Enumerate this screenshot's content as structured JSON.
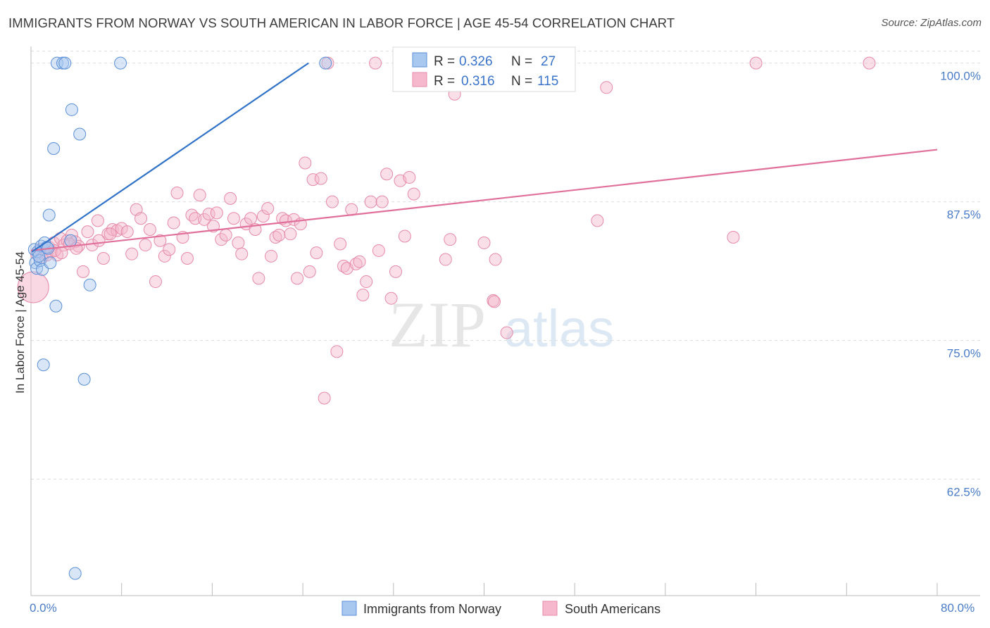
{
  "title": "IMMIGRANTS FROM NORWAY VS SOUTH AMERICAN IN LABOR FORCE | AGE 45-54 CORRELATION CHART",
  "source": "Source: ZipAtlas.com",
  "watermark": {
    "zip": "ZIP",
    "atlas": "atlas"
  },
  "colors": {
    "blue_fill": "#a8c8f0",
    "blue_stroke": "#5b8fd6",
    "blue_line": "#2f72c8",
    "pink_fill": "#f5b8cc",
    "pink_stroke": "#e68aa8",
    "pink_line": "#e0709a",
    "grid": "#dddddd",
    "tick_text": "#4a7cc7"
  },
  "legend": {
    "rows": [
      {
        "r_label": "R = ",
        "r_value": "0.326",
        "n_label": "N = ",
        "n_value": "27",
        "series": "norway"
      },
      {
        "r_label": "R = ",
        "r_value": "0.316",
        "n_label": "N = ",
        "n_value": "115",
        "series": "south_american"
      }
    ]
  },
  "bottom_legend": [
    {
      "label": "Immigrants from Norway",
      "series": "norway"
    },
    {
      "label": "South Americans",
      "series": "south_american"
    }
  ],
  "chart_data": {
    "type": "scatter",
    "title": "IMMIGRANTS FROM NORWAY VS SOUTH AMERICAN IN LABOR FORCE | AGE 45-54 CORRELATION CHART",
    "xlabel": "",
    "ylabel": "In Labor Force | Age 45-54",
    "xlim": [
      0,
      80
    ],
    "ylim": [
      52,
      101.5
    ],
    "x_tick_labels": [
      "0.0%",
      "80.0%"
    ],
    "y_ticks": [
      62.5,
      75.0,
      87.5,
      100.0
    ],
    "y_tick_labels": [
      "62.5%",
      "75.0%",
      "87.5%",
      "100.0%"
    ],
    "grid": true,
    "legend_position": "top-center",
    "series": [
      {
        "name": "Immigrants from Norway",
        "key": "norway",
        "R": 0.326,
        "N": 27,
        "trend": {
          "x": [
            0.1,
            24.5
          ],
          "y": [
            83.0,
            100.0
          ]
        },
        "points": [
          {
            "x": 0.3,
            "y": 83.2
          },
          {
            "x": 0.4,
            "y": 82.0
          },
          {
            "x": 0.5,
            "y": 81.5
          },
          {
            "x": 0.6,
            "y": 83.0
          },
          {
            "x": 0.8,
            "y": 82.2
          },
          {
            "x": 0.9,
            "y": 83.5
          },
          {
            "x": 1.0,
            "y": 81.4
          },
          {
            "x": 1.2,
            "y": 83.8
          },
          {
            "x": 1.4,
            "y": 83.4
          },
          {
            "x": 1.6,
            "y": 86.3
          },
          {
            "x": 1.7,
            "y": 82.0
          },
          {
            "x": 2.0,
            "y": 92.3
          },
          {
            "x": 2.2,
            "y": 78.1
          },
          {
            "x": 2.3,
            "y": 100.0
          },
          {
            "x": 2.8,
            "y": 100.0
          },
          {
            "x": 3.0,
            "y": 100.0
          },
          {
            "x": 3.5,
            "y": 84.0
          },
          {
            "x": 3.6,
            "y": 95.8
          },
          {
            "x": 4.3,
            "y": 93.6
          },
          {
            "x": 5.2,
            "y": 80.0
          },
          {
            "x": 7.9,
            "y": 100.0
          },
          {
            "x": 26.0,
            "y": 100.0
          },
          {
            "x": 1.1,
            "y": 72.8
          },
          {
            "x": 4.7,
            "y": 71.5
          },
          {
            "x": 3.9,
            "y": 54.0
          },
          {
            "x": 0.7,
            "y": 82.6
          },
          {
            "x": 1.5,
            "y": 83.3
          }
        ]
      },
      {
        "name": "South Americans",
        "key": "south_american",
        "R": 0.316,
        "N": 115,
        "trend": {
          "x": [
            0.0,
            80.0
          ],
          "y": [
            83.1,
            92.2
          ]
        },
        "points": [
          {
            "x": 0.2,
            "y": 79.8,
            "big": true
          },
          {
            "x": 0.5,
            "y": 82.8
          },
          {
            "x": 0.8,
            "y": 83.2
          },
          {
            "x": 1.0,
            "y": 82.5
          },
          {
            "x": 1.3,
            "y": 82.9
          },
          {
            "x": 1.6,
            "y": 83.4
          },
          {
            "x": 1.8,
            "y": 83.0
          },
          {
            "x": 2.0,
            "y": 83.8
          },
          {
            "x": 2.3,
            "y": 82.7
          },
          {
            "x": 2.6,
            "y": 84.2
          },
          {
            "x": 2.9,
            "y": 83.6
          },
          {
            "x": 3.2,
            "y": 84.0
          },
          {
            "x": 3.6,
            "y": 84.5
          },
          {
            "x": 3.9,
            "y": 83.9
          },
          {
            "x": 4.2,
            "y": 83.5
          },
          {
            "x": 4.6,
            "y": 81.2
          },
          {
            "x": 5.0,
            "y": 84.8
          },
          {
            "x": 5.4,
            "y": 83.6
          },
          {
            "x": 5.9,
            "y": 85.8
          },
          {
            "x": 6.4,
            "y": 82.4
          },
          {
            "x": 6.8,
            "y": 84.6
          },
          {
            "x": 7.2,
            "y": 85.0
          },
          {
            "x": 7.6,
            "y": 84.9
          },
          {
            "x": 8.0,
            "y": 85.1
          },
          {
            "x": 8.5,
            "y": 84.8
          },
          {
            "x": 8.9,
            "y": 82.8
          },
          {
            "x": 9.3,
            "y": 86.8
          },
          {
            "x": 9.7,
            "y": 86.0
          },
          {
            "x": 10.1,
            "y": 83.6
          },
          {
            "x": 10.5,
            "y": 85.0
          },
          {
            "x": 11.0,
            "y": 80.3
          },
          {
            "x": 11.4,
            "y": 84.0
          },
          {
            "x": 11.8,
            "y": 82.6
          },
          {
            "x": 12.2,
            "y": 83.2
          },
          {
            "x": 12.6,
            "y": 85.6
          },
          {
            "x": 12.9,
            "y": 88.3
          },
          {
            "x": 13.4,
            "y": 84.3
          },
          {
            "x": 13.8,
            "y": 82.4
          },
          {
            "x": 14.2,
            "y": 86.3
          },
          {
            "x": 14.5,
            "y": 86.0
          },
          {
            "x": 14.9,
            "y": 88.1
          },
          {
            "x": 15.3,
            "y": 85.9
          },
          {
            "x": 15.7,
            "y": 86.4
          },
          {
            "x": 16.1,
            "y": 85.3
          },
          {
            "x": 16.4,
            "y": 86.5
          },
          {
            "x": 16.8,
            "y": 84.1
          },
          {
            "x": 17.2,
            "y": 84.5
          },
          {
            "x": 17.6,
            "y": 87.8
          },
          {
            "x": 17.9,
            "y": 86.0
          },
          {
            "x": 18.3,
            "y": 83.8
          },
          {
            "x": 18.6,
            "y": 82.8
          },
          {
            "x": 19.0,
            "y": 85.5
          },
          {
            "x": 19.4,
            "y": 86.0
          },
          {
            "x": 19.8,
            "y": 85.0
          },
          {
            "x": 20.1,
            "y": 80.6
          },
          {
            "x": 20.5,
            "y": 86.2
          },
          {
            "x": 20.9,
            "y": 86.9
          },
          {
            "x": 21.2,
            "y": 82.6
          },
          {
            "x": 21.6,
            "y": 84.3
          },
          {
            "x": 21.9,
            "y": 84.5
          },
          {
            "x": 22.2,
            "y": 86.0
          },
          {
            "x": 22.5,
            "y": 85.8
          },
          {
            "x": 22.9,
            "y": 84.6
          },
          {
            "x": 23.2,
            "y": 85.9
          },
          {
            "x": 23.5,
            "y": 80.6
          },
          {
            "x": 23.8,
            "y": 85.5
          },
          {
            "x": 24.2,
            "y": 91.0
          },
          {
            "x": 24.6,
            "y": 81.2
          },
          {
            "x": 24.9,
            "y": 89.5
          },
          {
            "x": 25.2,
            "y": 82.9
          },
          {
            "x": 25.6,
            "y": 89.6
          },
          {
            "x": 25.9,
            "y": 69.8
          },
          {
            "x": 26.2,
            "y": 100.0
          },
          {
            "x": 26.6,
            "y": 87.5
          },
          {
            "x": 27.0,
            "y": 74.0
          },
          {
            "x": 27.3,
            "y": 83.7
          },
          {
            "x": 27.6,
            "y": 81.7
          },
          {
            "x": 27.9,
            "y": 81.5
          },
          {
            "x": 28.3,
            "y": 86.8
          },
          {
            "x": 28.7,
            "y": 81.9
          },
          {
            "x": 29.0,
            "y": 82.1
          },
          {
            "x": 29.3,
            "y": 79.1
          },
          {
            "x": 29.6,
            "y": 80.3
          },
          {
            "x": 30.0,
            "y": 87.5
          },
          {
            "x": 30.4,
            "y": 100.0
          },
          {
            "x": 30.7,
            "y": 83.1
          },
          {
            "x": 31.0,
            "y": 87.5
          },
          {
            "x": 31.4,
            "y": 90.0
          },
          {
            "x": 31.8,
            "y": 78.8
          },
          {
            "x": 32.2,
            "y": 81.2
          },
          {
            "x": 32.6,
            "y": 89.4
          },
          {
            "x": 33.0,
            "y": 84.4
          },
          {
            "x": 33.4,
            "y": 89.7
          },
          {
            "x": 33.8,
            "y": 88.2
          },
          {
            "x": 36.2,
            "y": 100.0
          },
          {
            "x": 36.6,
            "y": 82.3
          },
          {
            "x": 37.0,
            "y": 84.1
          },
          {
            "x": 37.4,
            "y": 97.2
          },
          {
            "x": 40.0,
            "y": 83.8
          },
          {
            "x": 41.0,
            "y": 82.3
          },
          {
            "x": 40.8,
            "y": 78.6
          },
          {
            "x": 40.9,
            "y": 78.5
          },
          {
            "x": 42.0,
            "y": 75.7
          },
          {
            "x": 50.0,
            "y": 85.8
          },
          {
            "x": 50.8,
            "y": 97.8
          },
          {
            "x": 62.0,
            "y": 84.3
          },
          {
            "x": 64.0,
            "y": 100.0
          },
          {
            "x": 74.0,
            "y": 100.0
          },
          {
            "x": 1.4,
            "y": 82.7
          },
          {
            "x": 2.1,
            "y": 83.1
          },
          {
            "x": 2.7,
            "y": 82.9
          },
          {
            "x": 3.4,
            "y": 83.7
          },
          {
            "x": 4.0,
            "y": 83.3
          },
          {
            "x": 6.0,
            "y": 84.0
          },
          {
            "x": 7.0,
            "y": 84.6
          }
        ]
      }
    ]
  }
}
